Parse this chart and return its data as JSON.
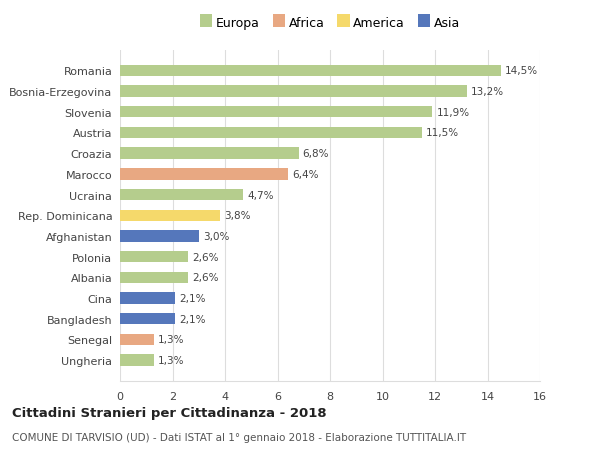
{
  "categories": [
    "Romania",
    "Bosnia-Erzegovina",
    "Slovenia",
    "Austria",
    "Croazia",
    "Marocco",
    "Ucraina",
    "Rep. Dominicana",
    "Afghanistan",
    "Polonia",
    "Albania",
    "Cina",
    "Bangladesh",
    "Senegal",
    "Ungheria"
  ],
  "values": [
    14.5,
    13.2,
    11.9,
    11.5,
    6.8,
    6.4,
    4.7,
    3.8,
    3.0,
    2.6,
    2.6,
    2.1,
    2.1,
    1.3,
    1.3
  ],
  "labels": [
    "14,5%",
    "13,2%",
    "11,9%",
    "11,5%",
    "6,8%",
    "6,4%",
    "4,7%",
    "3,8%",
    "3,0%",
    "2,6%",
    "2,6%",
    "2,1%",
    "2,1%",
    "1,3%",
    "1,3%"
  ],
  "continents": [
    "Europa",
    "Europa",
    "Europa",
    "Europa",
    "Europa",
    "Africa",
    "Europa",
    "America",
    "Asia",
    "Europa",
    "Europa",
    "Asia",
    "Asia",
    "Africa",
    "Europa"
  ],
  "colors": {
    "Europa": "#b5cd8d",
    "Africa": "#e8a882",
    "America": "#f5d96b",
    "Asia": "#5577bb"
  },
  "legend_order": [
    "Europa",
    "Africa",
    "America",
    "Asia"
  ],
  "xlim": [
    0,
    16
  ],
  "xticks": [
    0,
    2,
    4,
    6,
    8,
    10,
    12,
    14,
    16
  ],
  "title": "Cittadini Stranieri per Cittadinanza - 2018",
  "subtitle": "COMUNE DI TARVISIO (UD) - Dati ISTAT al 1° gennaio 2018 - Elaborazione TUTTITALIA.IT",
  "bg_color": "#ffffff",
  "grid_color": "#dddddd"
}
